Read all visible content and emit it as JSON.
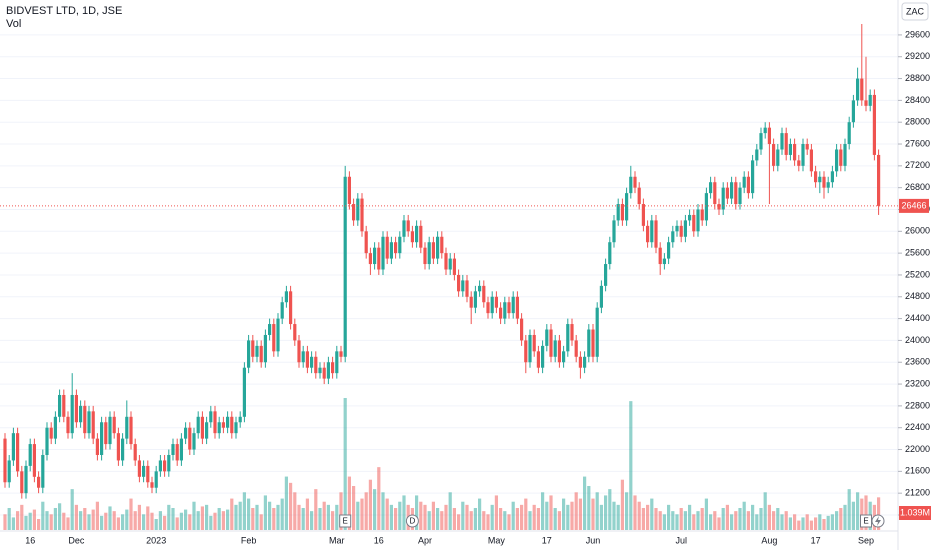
{
  "chart_data": {
    "type": "candlestick",
    "title": "BIDVEST LTD, 1D, JSE",
    "currency": "ZAC",
    "categories": [
      null,
      null,
      null,
      null,
      null,
      null,
      "16",
      null,
      null,
      null,
      null,
      null,
      null,
      null,
      null,
      null,
      null,
      "Dec",
      null,
      null,
      null,
      null,
      null,
      null,
      null,
      null,
      null,
      null,
      null,
      null,
      null,
      null,
      null,
      null,
      null,
      null,
      "2023",
      null,
      null,
      null,
      null,
      null,
      null,
      null,
      null,
      null,
      null,
      null,
      null,
      null,
      null,
      null,
      null,
      null,
      null,
      null,
      null,
      null,
      "Feb",
      null,
      null,
      null,
      null,
      null,
      null,
      null,
      null,
      null,
      null,
      null,
      null,
      null,
      null,
      null,
      null,
      null,
      null,
      null,
      null,
      "Mar",
      null,
      null,
      null,
      null,
      null,
      null,
      null,
      null,
      null,
      "16",
      null,
      null,
      null,
      null,
      null,
      null,
      null,
      null,
      null,
      null,
      "Apr",
      null,
      null,
      null,
      null,
      null,
      null,
      null,
      null,
      null,
      null,
      null,
      null,
      null,
      null,
      null,
      null,
      "May",
      null,
      null,
      null,
      null,
      null,
      null,
      null,
      null,
      null,
      null,
      null,
      "17",
      null,
      null,
      null,
      null,
      null,
      null,
      null,
      null,
      null,
      null,
      "Jun",
      null,
      null,
      null,
      null,
      null,
      null,
      null,
      null,
      null,
      null,
      null,
      null,
      null,
      null,
      null,
      null,
      null,
      null,
      null,
      null,
      "Jul",
      null,
      null,
      null,
      null,
      null,
      null,
      null,
      null,
      null,
      null,
      null,
      null,
      null,
      null,
      null,
      null,
      null,
      null,
      null,
      null,
      "Aug",
      null,
      null,
      null,
      null,
      null,
      null,
      null,
      null,
      null,
      null,
      "17",
      null,
      null,
      null,
      null,
      null,
      null,
      null,
      null,
      null,
      null,
      null,
      "Sep",
      null,
      null,
      null
    ],
    "open": [
      22200,
      21400,
      21800,
      22300,
      21600,
      21200,
      21700,
      22100,
      21500,
      21300,
      21900,
      22400,
      22200,
      22600,
      23000,
      22600,
      22300,
      23000,
      22500,
      22800,
      22300,
      22700,
      22200,
      21900,
      22500,
      22100,
      22600,
      22300,
      21800,
      22200,
      22600,
      22100,
      21800,
      21500,
      21700,
      21400,
      21300,
      21600,
      21800,
      21600,
      21900,
      22100,
      21800,
      22200,
      22400,
      22000,
      22300,
      22600,
      22200,
      22500,
      22700,
      22300,
      22500,
      22400,
      22600,
      22300,
      22500,
      22600,
      23500,
      24000,
      23700,
      23900,
      23600,
      24100,
      24300,
      23800,
      24400,
      24700,
      24900,
      24300,
      24000,
      23600,
      23800,
      23500,
      23700,
      23400,
      23500,
      23300,
      23600,
      23400,
      23800,
      23700,
      27000,
      26500,
      26200,
      26600,
      26000,
      25600,
      25400,
      25700,
      25300,
      25900,
      25500,
      25800,
      25600,
      25900,
      26200,
      26000,
      25800,
      26100,
      25700,
      25400,
      25800,
      25500,
      25900,
      25600,
      25300,
      25500,
      25200,
      24900,
      25100,
      24800,
      24600,
      24900,
      25000,
      24700,
      24500,
      24800,
      24600,
      24400,
      24700,
      24500,
      24800,
      24400,
      24000,
      23600,
      24100,
      23800,
      23500,
      23900,
      24200,
      23700,
      24000,
      23600,
      23800,
      24300,
      24000,
      23700,
      23500,
      23700,
      24200,
      23700,
      24600,
      25000,
      25400,
      25800,
      26200,
      26500,
      26200,
      26700,
      27000,
      26800,
      26500,
      26100,
      25800,
      26200,
      25700,
      25400,
      25500,
      25800,
      26000,
      26100,
      25900,
      26200,
      26300,
      26000,
      26400,
      26200,
      26700,
      26900,
      26500,
      26400,
      26800,
      26600,
      26900,
      26500,
      26800,
      27000,
      26700,
      27300,
      27500,
      27800,
      27900,
      27600,
      27200,
      27500,
      27800,
      27400,
      27600,
      27300,
      27200,
      27600,
      27500,
      27100,
      26900,
      27000,
      26800,
      26900,
      27100,
      27500,
      27200,
      27600,
      28000,
      28400,
      28800,
      28400,
      28300,
      28500,
      27400
    ],
    "high": [
      22300,
      21900,
      22400,
      22400,
      21700,
      21800,
      22200,
      22200,
      21600,
      22000,
      22500,
      22500,
      22700,
      23100,
      23100,
      22700,
      23400,
      23100,
      22900,
      22900,
      22800,
      22800,
      22300,
      22600,
      22600,
      22700,
      22700,
      22400,
      22300,
      22900,
      22700,
      22200,
      21900,
      21800,
      21800,
      21500,
      21700,
      21900,
      21900,
      22000,
      22200,
      22200,
      22300,
      22500,
      22500,
      22400,
      22700,
      22700,
      22600,
      22800,
      22800,
      22600,
      22600,
      22700,
      22700,
      22600,
      22700,
      23600,
      24100,
      24100,
      24000,
      24000,
      24200,
      24400,
      24400,
      24500,
      24800,
      25000,
      25000,
      24400,
      24100,
      23900,
      23900,
      23800,
      23800,
      23600,
      23600,
      23700,
      23700,
      23900,
      23900,
      27200,
      27100,
      26600,
      26700,
      26700,
      26100,
      25700,
      25800,
      25800,
      26000,
      26000,
      25900,
      25900,
      26000,
      26300,
      26300,
      26100,
      26200,
      26200,
      25800,
      25900,
      25900,
      26000,
      26000,
      25700,
      25600,
      25600,
      25300,
      25200,
      25200,
      24900,
      25000,
      25100,
      25100,
      24800,
      24900,
      24900,
      24700,
      24800,
      24800,
      24900,
      24900,
      24500,
      24100,
      24200,
      24200,
      23900,
      24000,
      24300,
      24300,
      24100,
      24100,
      23900,
      24400,
      24400,
      24100,
      23800,
      23800,
      24300,
      24300,
      24700,
      25100,
      25500,
      25900,
      26300,
      26600,
      26600,
      26800,
      27200,
      27100,
      26900,
      26600,
      26200,
      26300,
      26300,
      25800,
      25600,
      25900,
      26100,
      26200,
      26200,
      26300,
      26400,
      26400,
      26500,
      26500,
      26800,
      27000,
      27000,
      26600,
      26900,
      26900,
      27000,
      27000,
      26900,
      27100,
      27100,
      27400,
      27600,
      27900,
      28000,
      28000,
      27700,
      27600,
      27900,
      27900,
      27700,
      27700,
      27400,
      27700,
      27700,
      27600,
      27200,
      27100,
      27100,
      27000,
      27200,
      27600,
      27600,
      27700,
      28100,
      28500,
      29000,
      29800,
      29200,
      28600,
      28600,
      27500
    ],
    "low": [
      21300,
      21300,
      21700,
      21500,
      21100,
      21100,
      21600,
      21400,
      21200,
      21200,
      21800,
      22100,
      22100,
      22500,
      22500,
      22200,
      22200,
      22400,
      22400,
      22200,
      22200,
      22100,
      21800,
      21800,
      22000,
      22000,
      22200,
      21700,
      21700,
      22100,
      22000,
      21700,
      21400,
      21400,
      21300,
      21200,
      21200,
      21500,
      21500,
      21500,
      21800,
      21700,
      21700,
      22100,
      21900,
      21900,
      22200,
      22100,
      22100,
      22400,
      22200,
      22200,
      22300,
      22300,
      22200,
      22200,
      22400,
      22500,
      23400,
      23600,
      23600,
      23500,
      23500,
      24000,
      23700,
      23700,
      24300,
      24600,
      24200,
      23900,
      23500,
      23500,
      23400,
      23400,
      23300,
      23300,
      23200,
      23200,
      23300,
      23300,
      23600,
      23600,
      26400,
      26100,
      26100,
      25900,
      25500,
      25200,
      25300,
      25200,
      25200,
      25400,
      25400,
      25500,
      25500,
      25800,
      25900,
      25700,
      25700,
      25600,
      25300,
      25300,
      25400,
      25400,
      25500,
      25200,
      25200,
      25100,
      24800,
      24800,
      24700,
      24300,
      24500,
      24800,
      24600,
      24400,
      24400,
      24500,
      24300,
      24300,
      24400,
      24400,
      24300,
      23900,
      23400,
      23500,
      23700,
      23400,
      23400,
      23800,
      23600,
      23600,
      23500,
      23500,
      23700,
      23900,
      23600,
      23300,
      23400,
      23600,
      23600,
      23600,
      24500,
      24900,
      25300,
      25700,
      26100,
      26100,
      26100,
      26600,
      26700,
      26400,
      26000,
      25700,
      25700,
      25600,
      25200,
      25300,
      25400,
      25700,
      25900,
      25800,
      25800,
      26100,
      25900,
      25900,
      26100,
      26100,
      26600,
      26400,
      26300,
      26300,
      26500,
      26500,
      26400,
      26400,
      26700,
      26600,
      26600,
      27200,
      27400,
      27700,
      26500,
      27100,
      27100,
      27400,
      27300,
      27300,
      27200,
      27100,
      27100,
      27400,
      27000,
      26800,
      26700,
      26600,
      26700,
      26800,
      27000,
      27100,
      27100,
      27500,
      27900,
      28300,
      28300,
      28200,
      28200,
      27300,
      26300
    ],
    "close": [
      21400,
      21800,
      22300,
      21600,
      21200,
      21700,
      22100,
      21500,
      21300,
      21900,
      22400,
      22200,
      22600,
      23000,
      22600,
      22300,
      23000,
      22500,
      22800,
      22300,
      22700,
      22200,
      21900,
      22500,
      22100,
      22600,
      22300,
      21800,
      22200,
      22600,
      22100,
      21800,
      21500,
      21700,
      21400,
      21300,
      21600,
      21800,
      21600,
      21900,
      22100,
      21800,
      22200,
      22400,
      22000,
      22300,
      22600,
      22200,
      22500,
      22700,
      22300,
      22500,
      22400,
      22600,
      22300,
      22500,
      22600,
      23500,
      24000,
      23700,
      23900,
      23600,
      24100,
      24300,
      23800,
      24400,
      24700,
      24900,
      24300,
      24000,
      23600,
      23800,
      23500,
      23700,
      23400,
      23500,
      23300,
      23600,
      23400,
      23800,
      23700,
      27000,
      26500,
      26200,
      26600,
      26000,
      25600,
      25400,
      25700,
      25300,
      25900,
      25500,
      25800,
      25600,
      25900,
      26200,
      26000,
      25800,
      26100,
      25700,
      25400,
      25800,
      25500,
      25900,
      25600,
      25300,
      25500,
      25200,
      24900,
      25100,
      24800,
      24600,
      24900,
      25000,
      24700,
      24500,
      24800,
      24600,
      24400,
      24700,
      24500,
      24800,
      24400,
      24000,
      23600,
      24100,
      23800,
      23500,
      23900,
      24200,
      23700,
      24000,
      23600,
      23800,
      24300,
      24000,
      23700,
      23500,
      23700,
      24200,
      23700,
      24600,
      25000,
      25400,
      25800,
      26200,
      26500,
      26200,
      26700,
      27000,
      26800,
      26500,
      26100,
      25800,
      26200,
      25700,
      25400,
      25500,
      25800,
      26000,
      26100,
      25900,
      26200,
      26300,
      26000,
      26400,
      26200,
      26700,
      26900,
      26500,
      26400,
      26800,
      26600,
      26900,
      26500,
      26800,
      27000,
      26700,
      27300,
      27500,
      27800,
      27900,
      27600,
      27200,
      27500,
      27800,
      27400,
      27600,
      27300,
      27200,
      27600,
      27500,
      27100,
      26900,
      27000,
      26800,
      26900,
      27100,
      27500,
      27200,
      27600,
      28000,
      28400,
      28800,
      28400,
      28300,
      28500,
      27400,
      26466
    ],
    "up_color": "#26a69a",
    "down_color": "#ef5350",
    "ylim": [
      20525,
      30240
    ],
    "yticks": [
      20800,
      21200,
      21600,
      22000,
      22400,
      22800,
      23200,
      23600,
      24000,
      24400,
      24800,
      25200,
      25600,
      26000,
      26400,
      26800,
      27200,
      27600,
      28000,
      28400,
      28800,
      29200,
      29600
    ],
    "grid": true,
    "volume": {
      "name": "Vol",
      "last_label": "1.039M",
      "values": [
        500000,
        700000,
        400000,
        600000,
        800000,
        450000,
        550000,
        650000,
        350000,
        900000,
        600000,
        500000,
        700000,
        850000,
        550000,
        400000,
        1300000,
        800000,
        600000,
        700000,
        500000,
        650000,
        900000,
        450000,
        550000,
        750000,
        600000,
        400000,
        500000,
        650000,
        1000000,
        600000,
        800000,
        500000,
        750000,
        550000,
        350000,
        600000,
        450000,
        800000,
        700000,
        400000,
        550000,
        650000,
        500000,
        900000,
        600000,
        750000,
        800000,
        450000,
        550000,
        700000,
        600000,
        650000,
        1000000,
        800000,
        900000,
        1200000,
        1000000,
        700000,
        800000,
        500000,
        1100000,
        900000,
        700000,
        800000,
        1000000,
        1700000,
        1500000,
        1200000,
        800000,
        700000,
        1000000,
        600000,
        1300000,
        700000,
        900000,
        800000,
        600000,
        800000,
        1200000,
        4200000,
        1700000,
        1400000,
        900000,
        1000000,
        1200000,
        1600000,
        1300000,
        2000000,
        1200000,
        1000000,
        800000,
        700000,
        900000,
        1100000,
        800000,
        700000,
        1100000,
        900000,
        800000,
        600000,
        900000,
        700000,
        600000,
        800000,
        1200000,
        700000,
        500000,
        900000,
        800000,
        600000,
        700000,
        1000000,
        600000,
        500000,
        800000,
        1100000,
        700000,
        600000,
        500000,
        900000,
        700000,
        800000,
        1000000,
        600000,
        800000,
        700000,
        1200000,
        900000,
        1100000,
        700000,
        600000,
        1000000,
        800000,
        900000,
        1200000,
        1000000,
        1700000,
        1400000,
        1000000,
        1200000,
        800000,
        1100000,
        1300000,
        900000,
        800000,
        1600000,
        1200000,
        4100000,
        1100000,
        900000,
        700000,
        800000,
        1000000,
        700000,
        600000,
        500000,
        800000,
        600000,
        500000,
        700000,
        600000,
        800000,
        500000,
        600000,
        700000,
        1000000,
        500000,
        600000,
        400000,
        700000,
        800000,
        500000,
        600000,
        700000,
        900000,
        600000,
        800000,
        500000,
        700000,
        1200000,
        800000,
        600000,
        700000,
        500000,
        600000,
        400000,
        500000,
        300000,
        400000,
        500000,
        300000,
        400000,
        500000,
        350000,
        450000,
        500000,
        600000,
        700000,
        800000,
        1300000,
        900000,
        1200000,
        1000000,
        1100000,
        900000,
        800000,
        1039000
      ]
    },
    "events": [
      "E",
      "D",
      "E"
    ]
  }
}
